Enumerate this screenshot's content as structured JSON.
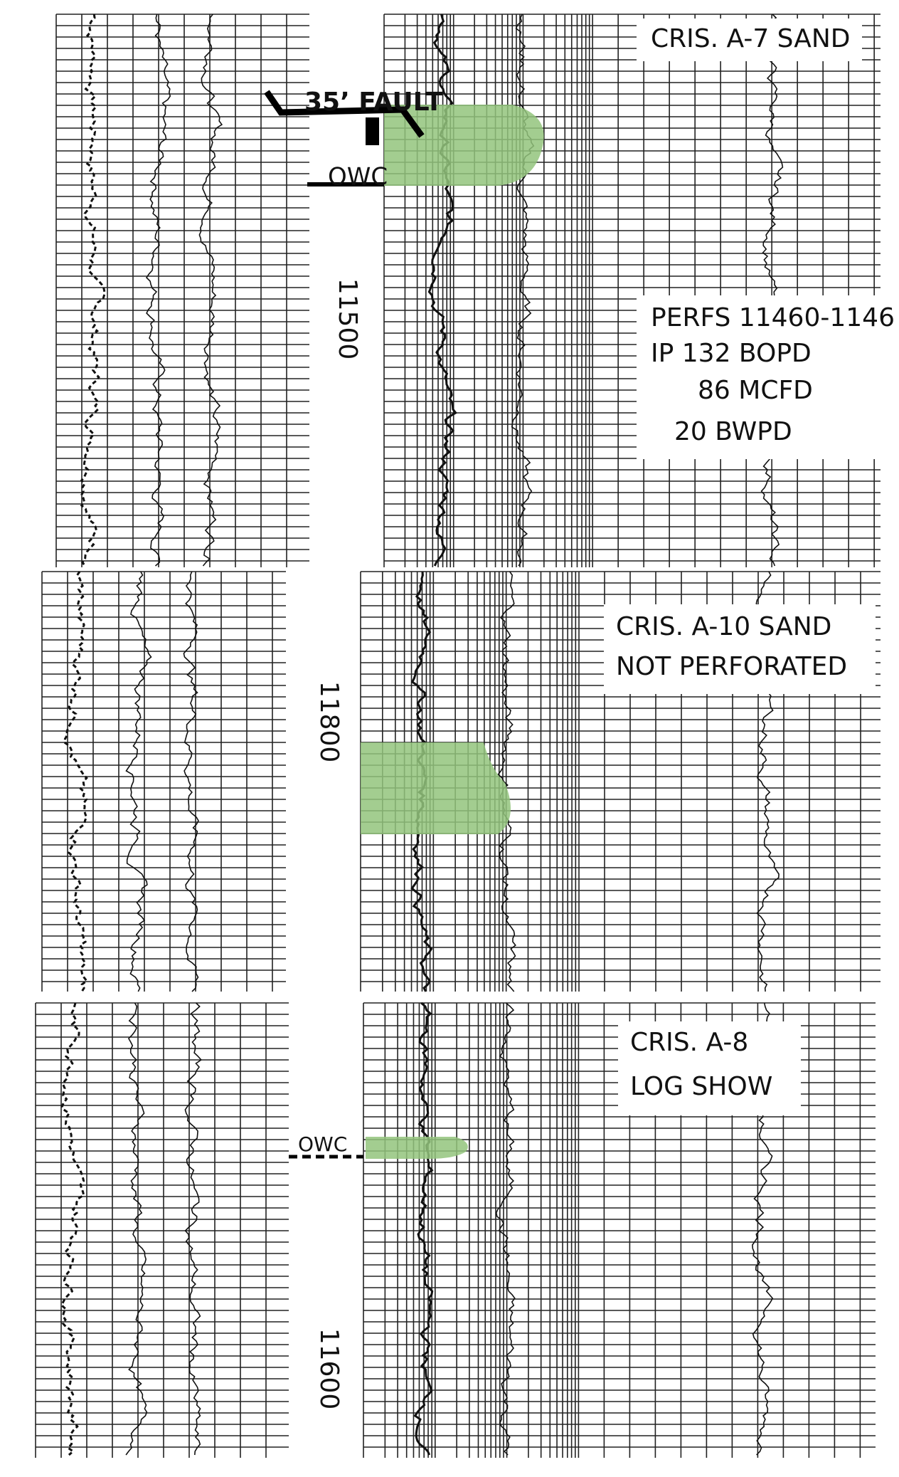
{
  "panels": [
    {
      "title": [
        "CRIS. A-7 SAND"
      ],
      "fault": "35’ FAULT",
      "owc": "OWC",
      "depth": "11500",
      "perfs": [
        "PERFS 11460-1146",
        "IP 132 BOPD",
        "86 MCFD",
        "20 BWPD"
      ]
    },
    {
      "title": [
        "CRIS. A-10 SAND",
        "NOT PERFORATED"
      ],
      "depth": "11800"
    },
    {
      "title": [
        "CRIS. A-8",
        "LOG SHOW"
      ],
      "owc": "OWC",
      "depth": "11600"
    }
  ]
}
